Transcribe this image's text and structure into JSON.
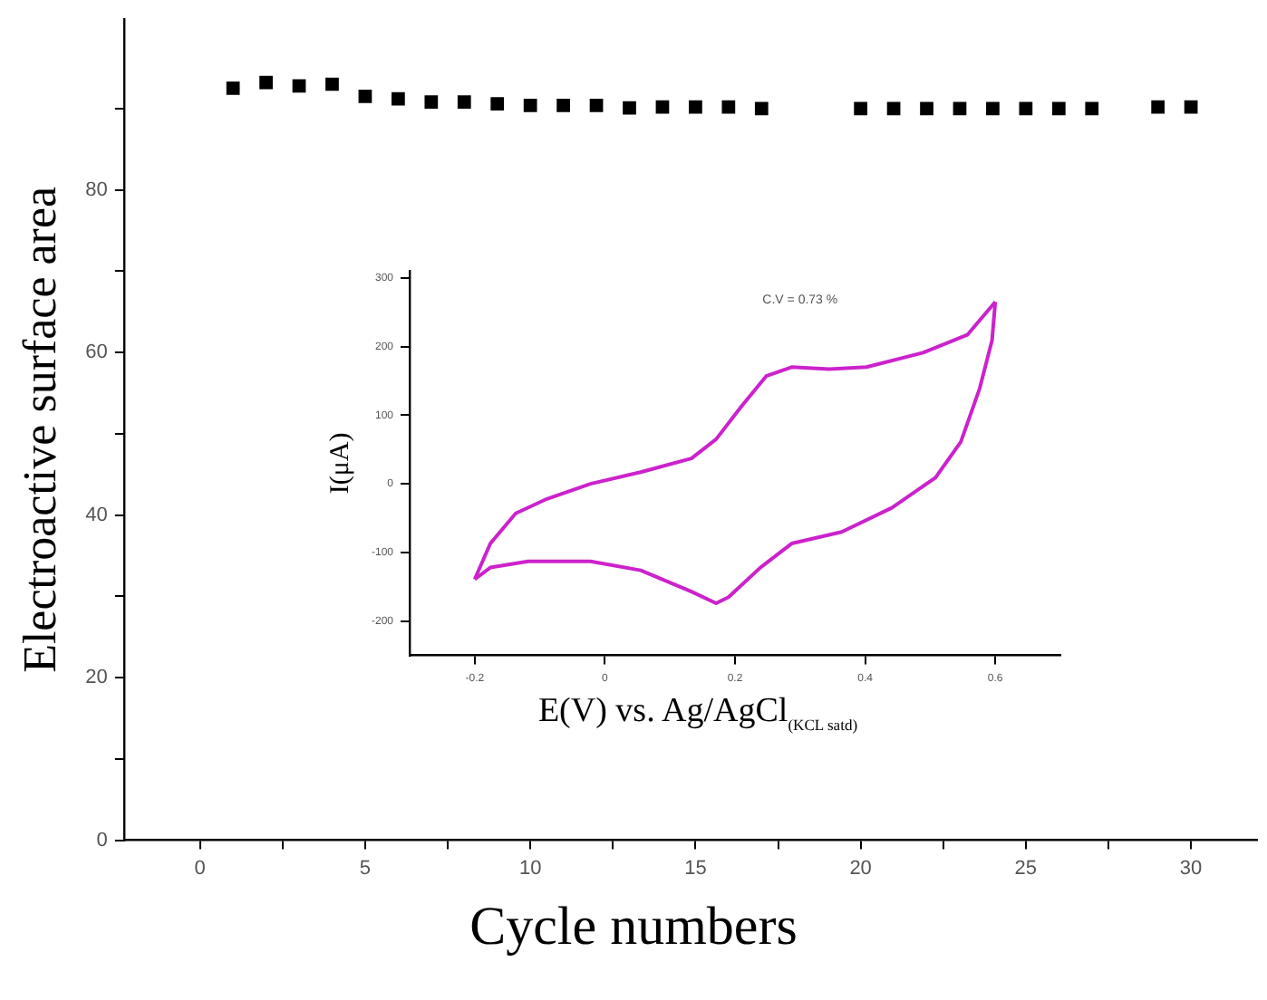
{
  "chart_data": [
    {
      "type": "scatter",
      "xlabel": "Cycle numbers",
      "ylabel": "Electroactive surface area",
      "marker": "square",
      "grid": false,
      "legend": false,
      "xlim": [
        -2.3,
        32
      ],
      "xticks": [
        0,
        {
          "value": 2.5,
          "label": null
        },
        5,
        {
          "value": 7.5,
          "label": null
        },
        10,
        {
          "value": 12.5,
          "label": null
        },
        15,
        {
          "value": 17.5,
          "label": null
        },
        20,
        {
          "value": 22.5,
          "label": null
        },
        25,
        {
          "value": 27.5,
          "label": null
        },
        30
      ],
      "ylim": [
        0,
        101
      ],
      "yticks": [
        0,
        {
          "value": 10,
          "label": null
        },
        20,
        {
          "value": 30,
          "label": null
        },
        40,
        {
          "value": 50,
          "label": null
        },
        60,
        {
          "value": 70,
          "label": null
        },
        80,
        {
          "value": 90,
          "label": null
        }
      ],
      "series": [
        {
          "color": "#000000",
          "x": [
            1,
            2,
            3,
            4,
            5,
            6,
            7,
            8,
            9,
            10,
            11,
            12,
            13,
            14,
            15,
            16,
            17,
            20,
            21,
            22,
            23,
            24,
            25,
            26,
            27,
            29,
            30
          ],
          "values": [
            92.5,
            93.2,
            92.8,
            93.0,
            91.5,
            91.2,
            90.8,
            90.8,
            90.6,
            90.4,
            90.4,
            90.4,
            90.1,
            90.2,
            90.2,
            90.2,
            90.0,
            90.0,
            90.0,
            90.0,
            90.0,
            90.0,
            90.0,
            90.0,
            90.0,
            90.2,
            90.2
          ]
        }
      ]
    },
    {
      "type": "line",
      "xlabel": "E(V) vs. Ag/AgCl$_{(KCL satd)}$",
      "ylabel": "I(μA)",
      "marker": "none",
      "grid": false,
      "legend": false,
      "annotations": [
        "C.V = 0.73 %"
      ],
      "xlim": [
        -0.3,
        0.7
      ],
      "xticks": [
        -0.2,
        0.0,
        0.2,
        0.4,
        0.6
      ],
      "ylim": [
        -250,
        310
      ],
      "yticks": [
        -200,
        -100,
        0,
        100,
        200,
        300
      ],
      "series": [
        {
          "color": "#cc22cc",
          "x": [
            -0.2,
            -0.176,
            -0.137,
            -0.089,
            -0.022,
            0.055,
            0.133,
            0.171,
            0.21,
            0.248,
            0.287,
            0.345,
            0.402,
            0.489,
            0.557,
            0.6
          ],
          "values": [
            -139,
            -87,
            -43,
            -22,
            0,
            17,
            37,
            65,
            113,
            157,
            170,
            167,
            170,
            191,
            217,
            265
          ]
        },
        {
          "color": "#cc22cc",
          "x": [
            -0.2,
            -0.176,
            -0.118,
            -0.022,
            0.055,
            0.133,
            0.171,
            0.19,
            0.239,
            0.287,
            0.364,
            0.441,
            0.508,
            0.547,
            0.576,
            0.595,
            0.6
          ],
          "values": [
            -139,
            -122,
            -113,
            -113,
            -126,
            -157,
            -174,
            -165,
            -122,
            -87,
            -70,
            -35,
            9,
            61,
            139,
            209,
            265
          ]
        }
      ]
    }
  ]
}
